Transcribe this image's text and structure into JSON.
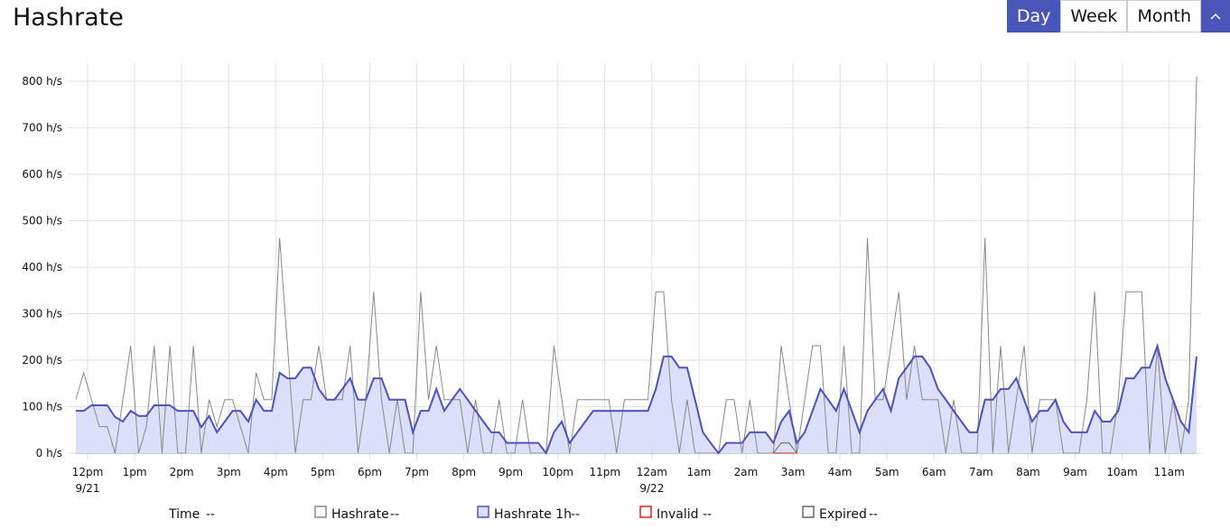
{
  "title": "Hashrate",
  "controls": {
    "ranges": [
      "Day",
      "Week",
      "Month"
    ],
    "active": "Day"
  },
  "chart_data": {
    "type": "line",
    "xlabel": "Time",
    "legend_placeholder": "--",
    "x": [
      "9/21 11:45",
      "9/21 11:55",
      "9/21 12:05",
      "9/21 12:15",
      "9/21 12:25",
      "9/21 12:35",
      "9/21 12:45",
      "9/21 12:55",
      "9/21 13:05",
      "9/21 13:15",
      "9/21 13:25",
      "9/21 13:35",
      "9/21 13:45",
      "9/21 13:55",
      "9/21 14:05",
      "9/21 14:15",
      "9/21 14:25",
      "9/21 14:35",
      "9/21 14:45",
      "9/21 14:55",
      "9/21 15:05",
      "9/21 15:15",
      "9/21 15:25",
      "9/21 15:35",
      "9/21 15:45",
      "9/21 15:55",
      "9/21 16:05",
      "9/21 16:15",
      "9/21 16:25",
      "9/21 16:35",
      "9/21 16:45",
      "9/21 16:55",
      "9/21 17:05",
      "9/21 17:15",
      "9/21 17:25",
      "9/21 17:35",
      "9/21 17:45",
      "9/21 17:55",
      "9/21 18:05",
      "9/21 18:15",
      "9/21 18:25",
      "9/21 18:35",
      "9/21 18:45",
      "9/21 18:55",
      "9/21 19:05",
      "9/21 19:15",
      "9/21 19:25",
      "9/21 19:35",
      "9/21 19:45",
      "9/21 19:55",
      "9/21 20:05",
      "9/21 20:15",
      "9/21 20:25",
      "9/21 20:35",
      "9/21 20:45",
      "9/21 20:55",
      "9/21 21:05",
      "9/21 21:15",
      "9/21 21:25",
      "9/21 21:35",
      "9/21 21:45",
      "9/21 21:55",
      "9/21 22:05",
      "9/21 22:15",
      "9/21 22:25",
      "9/21 22:35",
      "9/21 22:45",
      "9/21 22:55",
      "9/21 23:05",
      "9/21 23:15",
      "9/21 23:25",
      "9/21 23:35",
      "9/21 23:45",
      "9/21 23:55",
      "9/22 00:05",
      "9/22 00:15",
      "9/22 00:25",
      "9/22 00:35",
      "9/22 00:45",
      "9/22 00:55",
      "9/22 01:05",
      "9/22 01:15",
      "9/22 01:25",
      "9/22 01:35",
      "9/22 01:45",
      "9/22 01:55",
      "9/22 02:05",
      "9/22 02:15",
      "9/22 02:25",
      "9/22 02:35",
      "9/22 02:45",
      "9/22 02:55",
      "9/22 03:05",
      "9/22 03:15",
      "9/22 03:25",
      "9/22 03:35",
      "9/22 03:45",
      "9/22 03:55",
      "9/22 04:05",
      "9/22 04:15",
      "9/22 04:25",
      "9/22 04:35",
      "9/22 04:45",
      "9/22 04:55",
      "9/22 05:05",
      "9/22 05:15",
      "9/22 05:25",
      "9/22 05:35",
      "9/22 05:45",
      "9/22 05:55",
      "9/22 06:05",
      "9/22 06:15",
      "9/22 06:25",
      "9/22 06:35",
      "9/22 06:45",
      "9/22 06:55",
      "9/22 07:05",
      "9/22 07:15",
      "9/22 07:25",
      "9/22 07:35",
      "9/22 07:45",
      "9/22 07:55",
      "9/22 08:05",
      "9/22 08:15",
      "9/22 08:25",
      "9/22 08:35",
      "9/22 08:45",
      "9/22 08:55",
      "9/22 09:05",
      "9/22 09:15",
      "9/22 09:25",
      "9/22 09:35",
      "9/22 09:45",
      "9/22 09:55",
      "9/22 10:05",
      "9/22 10:15",
      "9/22 10:25",
      "9/22 10:35",
      "9/22 10:45",
      "9/22 10:55",
      "9/22 11:05",
      "9/22 11:15",
      "9/22 11:25",
      "9/22 11:35"
    ],
    "xlim": [
      "9/21 11:45",
      "9/22 11:35"
    ],
    "xticks": [
      {
        "value": "9/21 12:00",
        "label": "12pm"
      },
      {
        "value": "9/21 13:00",
        "label": "1pm"
      },
      {
        "value": "9/21 14:00",
        "label": "2pm"
      },
      {
        "value": "9/21 15:00",
        "label": "3pm"
      },
      {
        "value": "9/21 16:00",
        "label": "4pm"
      },
      {
        "value": "9/21 17:00",
        "label": "5pm"
      },
      {
        "value": "9/21 18:00",
        "label": "6pm"
      },
      {
        "value": "9/21 19:00",
        "label": "7pm"
      },
      {
        "value": "9/21 20:00",
        "label": "8pm"
      },
      {
        "value": "9/21 21:00",
        "label": "9pm"
      },
      {
        "value": "9/21 22:00",
        "label": "10pm"
      },
      {
        "value": "9/21 23:00",
        "label": "11pm"
      },
      {
        "value": "9/22 00:00",
        "label": "12am"
      },
      {
        "value": "9/22 01:00",
        "label": "1am"
      },
      {
        "value": "9/22 02:00",
        "label": "2am"
      },
      {
        "value": "9/22 03:00",
        "label": "3am"
      },
      {
        "value": "9/22 04:00",
        "label": "4am"
      },
      {
        "value": "9/22 05:00",
        "label": "5am"
      },
      {
        "value": "9/22 06:00",
        "label": "6am"
      },
      {
        "value": "9/22 07:00",
        "label": "7am"
      },
      {
        "value": "9/22 08:00",
        "label": "8am"
      },
      {
        "value": "9/22 09:00",
        "label": "9am"
      },
      {
        "value": "9/22 10:00",
        "label": "10am"
      },
      {
        "value": "9/22 11:00",
        "label": "11am"
      }
    ],
    "date_labels": [
      {
        "value": "9/21 12:00",
        "label": "9/21"
      },
      {
        "value": "9/22 00:00",
        "label": "9/22"
      }
    ],
    "ylim": [
      0,
      840
    ],
    "yticks": [
      {
        "value": 0,
        "label": "0 h/s"
      },
      {
        "value": 100,
        "label": "100 h/s"
      },
      {
        "value": 200,
        "label": "200 h/s"
      },
      {
        "value": 300,
        "label": "300 h/s"
      },
      {
        "value": 400,
        "label": "400 h/s"
      },
      {
        "value": 500,
        "label": "500 h/s"
      },
      {
        "value": 600,
        "label": "600 h/s"
      },
      {
        "value": 700,
        "label": "700 h/s"
      },
      {
        "value": 800,
        "label": "800 h/s"
      }
    ],
    "grid": true,
    "series": [
      {
        "name": "Hashrate",
        "color": "#888888",
        "marker_fill": "#ffffff",
        "values": [
          115,
          173,
          115,
          57,
          57,
          0,
          115,
          231,
          0,
          57,
          231,
          0,
          231,
          0,
          0,
          231,
          0,
          115,
          57,
          115,
          115,
          57,
          0,
          173,
          115,
          115,
          463,
          231,
          0,
          115,
          115,
          231,
          115,
          115,
          115,
          231,
          0,
          115,
          347,
          115,
          0,
          115,
          0,
          0,
          347,
          115,
          231,
          115,
          115,
          115,
          0,
          115,
          0,
          0,
          115,
          0,
          0,
          115,
          0,
          0,
          0,
          231,
          115,
          0,
          115,
          115,
          115,
          115,
          115,
          0,
          115,
          115,
          115,
          115,
          347,
          347,
          115,
          0,
          115,
          0,
          0,
          0,
          0,
          115,
          115,
          0,
          115,
          0,
          0,
          0,
          231,
          115,
          0,
          115,
          231,
          231,
          0,
          0,
          231,
          0,
          0,
          463,
          115,
          115,
          231,
          347,
          115,
          231,
          115,
          115,
          115,
          0,
          115,
          0,
          0,
          0,
          463,
          0,
          231,
          0,
          115,
          231,
          0,
          115,
          115,
          115,
          0,
          0,
          0,
          115,
          347,
          0,
          0,
          115,
          347,
          347,
          347,
          0,
          231,
          0,
          115,
          0,
          115,
          810
        ]
      },
      {
        "name": "Hashrate 1h",
        "color": "#4b53bd",
        "fill_color": "#dcdffa",
        "marker_fill": "#dcdffa",
        "area": true,
        "values": [
          91,
          91,
          103,
          103,
          103,
          78,
          68,
          91,
          80,
          80,
          103,
          103,
          103,
          91,
          91,
          91,
          56,
          80,
          45,
          68,
          91,
          91,
          68,
          115,
          91,
          91,
          173,
          161,
          161,
          184,
          184,
          138,
          115,
          115,
          138,
          161,
          115,
          115,
          161,
          161,
          115,
          115,
          115,
          45,
          91,
          91,
          138,
          91,
          115,
          138,
          115,
          91,
          68,
          45,
          45,
          22,
          22,
          22,
          22,
          22,
          0,
          45,
          68,
          22,
          45,
          68,
          91,
          91,
          91,
          91,
          91,
          91,
          91,
          91,
          138,
          208,
          208,
          184,
          184,
          115,
          45,
          22,
          0,
          22,
          22,
          22,
          45,
          45,
          45,
          22,
          68,
          91,
          22,
          45,
          91,
          138,
          115,
          91,
          138,
          91,
          45,
          91,
          115,
          138,
          91,
          161,
          184,
          208,
          208,
          184,
          138,
          115,
          91,
          68,
          45,
          45,
          115,
          115,
          138,
          138,
          161,
          115,
          68,
          91,
          91,
          115,
          68,
          45,
          45,
          45,
          91,
          68,
          68,
          91,
          161,
          161,
          184,
          184,
          231,
          161,
          115,
          68,
          45,
          208
        ]
      },
      {
        "name": "Invalid",
        "color": "#e0201b",
        "marker_fill": "#ffffff",
        "values": [
          null,
          null,
          null,
          null,
          null,
          null,
          null,
          null,
          null,
          null,
          null,
          null,
          null,
          null,
          null,
          null,
          null,
          null,
          null,
          null,
          null,
          null,
          null,
          null,
          null,
          null,
          null,
          null,
          null,
          null,
          null,
          null,
          null,
          null,
          null,
          null,
          null,
          null,
          null,
          null,
          null,
          null,
          null,
          null,
          null,
          null,
          null,
          null,
          null,
          null,
          null,
          null,
          null,
          null,
          null,
          null,
          null,
          null,
          null,
          null,
          null,
          null,
          null,
          null,
          null,
          null,
          null,
          null,
          null,
          null,
          null,
          null,
          null,
          null,
          null,
          null,
          null,
          null,
          null,
          null,
          null,
          null,
          null,
          null,
          null,
          null,
          null,
          null,
          null,
          0,
          0,
          0,
          0,
          null,
          null,
          null,
          null,
          null,
          null,
          null,
          null,
          null,
          null,
          null,
          null,
          null,
          null,
          null,
          null,
          null,
          null,
          null,
          null,
          null,
          null,
          null,
          null,
          null,
          null,
          null,
          null,
          null,
          null,
          null,
          null,
          null,
          null,
          null,
          null,
          null,
          null,
          null,
          null,
          null,
          null,
          null,
          null,
          null,
          null,
          null,
          null,
          null,
          null,
          null
        ]
      },
      {
        "name": "Expired",
        "color": "#666666",
        "marker_fill": "#ffffff",
        "values": [
          null,
          null,
          null,
          null,
          null,
          null,
          null,
          null,
          null,
          null,
          null,
          null,
          null,
          null,
          null,
          null,
          null,
          null,
          null,
          null,
          null,
          null,
          null,
          null,
          null,
          null,
          null,
          null,
          null,
          null,
          null,
          null,
          null,
          null,
          null,
          null,
          null,
          null,
          null,
          null,
          null,
          null,
          null,
          null,
          null,
          null,
          null,
          null,
          null,
          null,
          null,
          null,
          null,
          null,
          null,
          null,
          null,
          null,
          null,
          null,
          null,
          null,
          null,
          null,
          null,
          null,
          null,
          null,
          null,
          null,
          null,
          null,
          null,
          null,
          null,
          null,
          null,
          null,
          null,
          null,
          null,
          null,
          null,
          null,
          null,
          null,
          null,
          null,
          null,
          0,
          22,
          22,
          0,
          null,
          null,
          null,
          null,
          null,
          null,
          null,
          null,
          null,
          null,
          null,
          null,
          null,
          null,
          null,
          null,
          null,
          null,
          null,
          null,
          null,
          null,
          null,
          null,
          null,
          null,
          null,
          null,
          null,
          null,
          null,
          null,
          null,
          null,
          null,
          null,
          null,
          null,
          null,
          null,
          null,
          null,
          null,
          null,
          null,
          null,
          null,
          null,
          null,
          null,
          null
        ]
      }
    ]
  }
}
